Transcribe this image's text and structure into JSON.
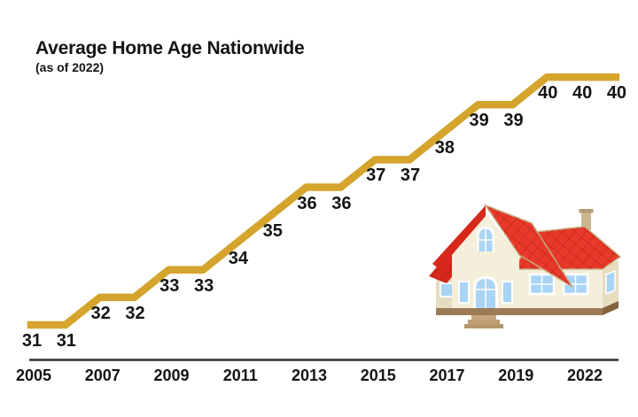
{
  "page": {
    "background": "#ffffff"
  },
  "header": {
    "title": "Average Home Age Nationwide",
    "subtitle": "(as of 2022)"
  },
  "chart_data": {
    "type": "line",
    "title": "Average Home Age Nationwide",
    "subtitle": "(as of 2022)",
    "x": [
      2005,
      2006,
      2007,
      2008,
      2009,
      2010,
      2011,
      2012,
      2013,
      2014,
      2015,
      2016,
      2017,
      2018,
      2019,
      2020,
      2021,
      2022
    ],
    "values": [
      31,
      31,
      32,
      32,
      33,
      33,
      34,
      35,
      36,
      36,
      37,
      37,
      38,
      39,
      39,
      40,
      40,
      40
    ],
    "point_labels": [
      "31",
      "31",
      "32",
      "32",
      "33",
      "33",
      "34",
      "35",
      "36",
      "36",
      "37",
      "37",
      "38",
      "39",
      "39",
      "40",
      "40",
      "40"
    ],
    "x_tick_labels": [
      "2005",
      "2007",
      "2009",
      "2011",
      "2013",
      "2015",
      "2017",
      "2019",
      "2022"
    ],
    "xlabel": "",
    "ylabel": "",
    "ylim": [
      31,
      40
    ],
    "grid": false,
    "legend": false,
    "line_color": "#D4A42D",
    "axis_color": "#2E2E2E",
    "label_color": "#141414"
  },
  "illustration": {
    "name": "house",
    "colors": {
      "roof": "#E8392B",
      "roof_dark": "#D7281C",
      "trim": "#C9AF82",
      "wall": "#F4EFDA",
      "wall_shade": "#E6DCC0",
      "window": "#A9D4F5",
      "base": "#9D7B57",
      "base_dark": "#84633F"
    }
  }
}
